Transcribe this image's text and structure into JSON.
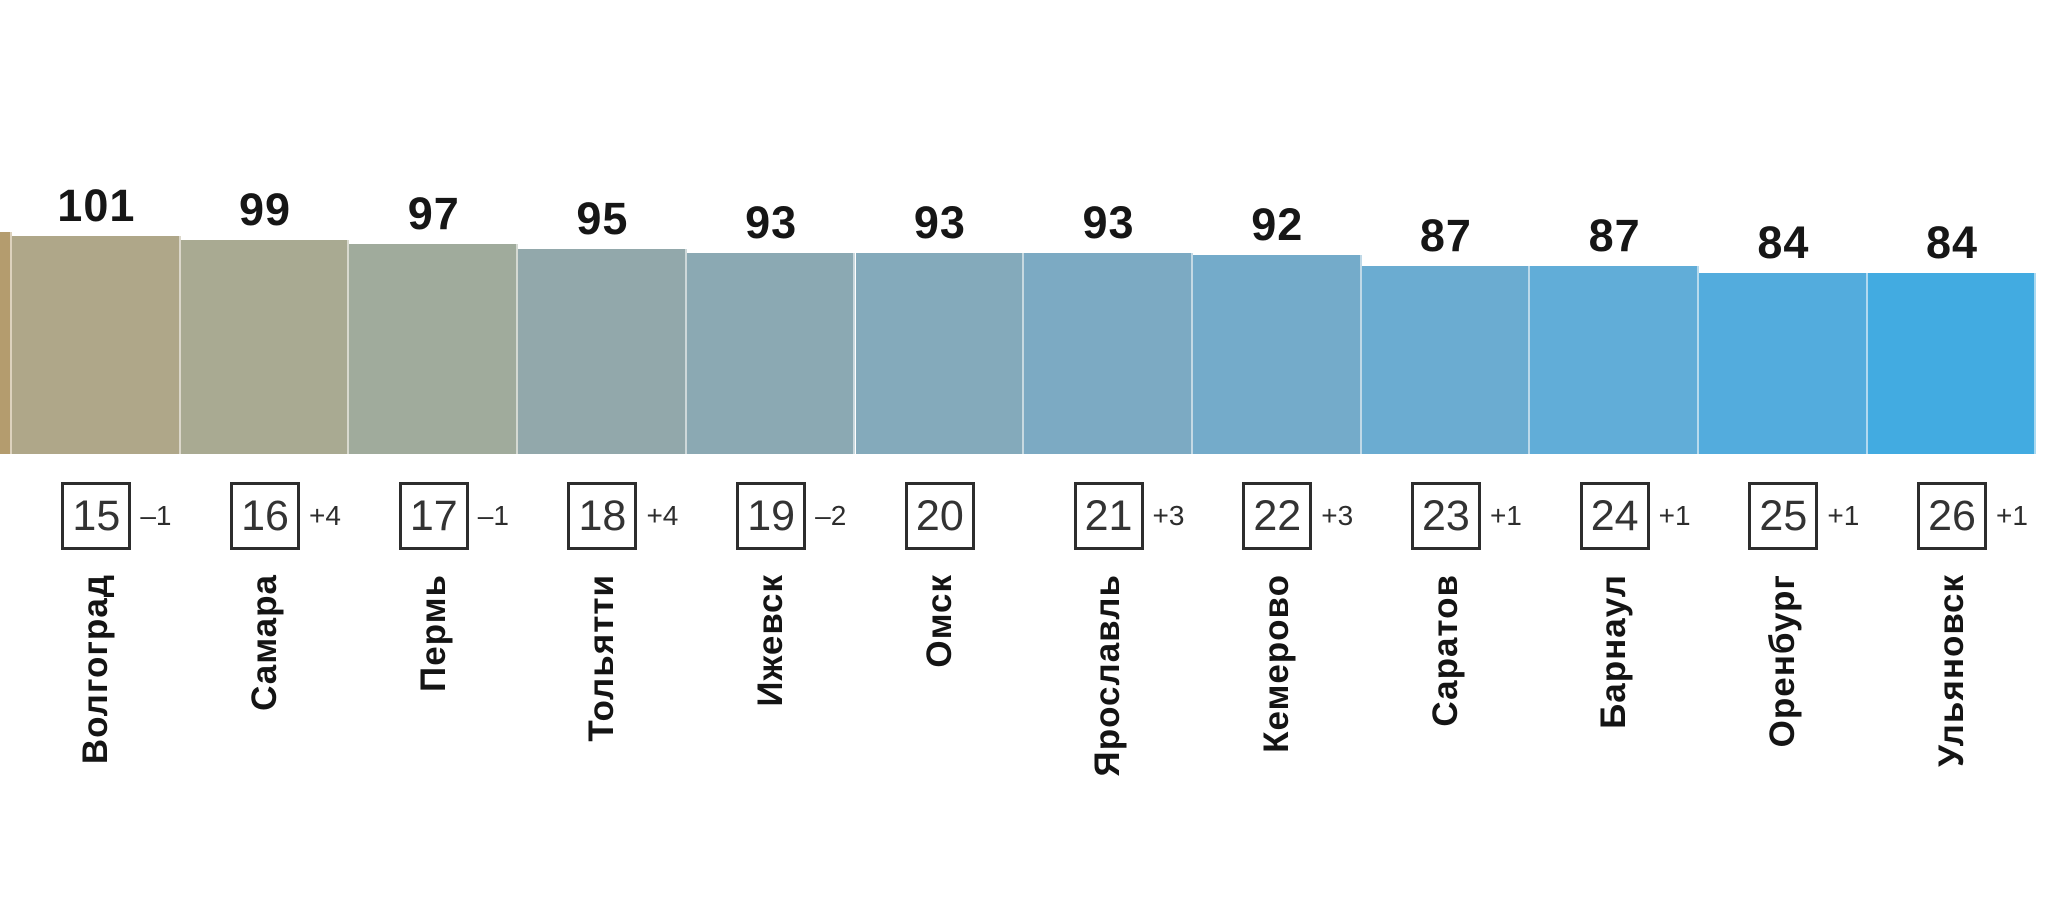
{
  "chart_data": {
    "type": "bar",
    "title": "",
    "xlabel": "",
    "ylabel": "",
    "categories": [
      "Волгоград",
      "Самара",
      "Пермь",
      "Тольятти",
      "Ижевск",
      "Омск",
      "Ярославль",
      "Кемерово",
      "Саратов",
      "Барнаул",
      "Оренбург",
      "Ульяновск"
    ],
    "values": [
      101,
      99,
      97,
      95,
      93,
      93,
      93,
      92,
      87,
      87,
      84,
      84
    ],
    "ranks": [
      15,
      16,
      17,
      18,
      19,
      20,
      21,
      22,
      23,
      24,
      25,
      26
    ],
    "rank_changes": [
      "–1",
      "+4",
      "–1",
      "+4",
      "–2",
      "",
      "+3",
      "+3",
      "+1",
      "+1",
      "+1",
      "+1"
    ],
    "bar_colors": [
      "#afa789",
      "#a9aa92",
      "#a0ab9c",
      "#92a8ab",
      "#8ba9b3",
      "#84aabb",
      "#7caac3",
      "#74abca",
      "#6bacd1",
      "#61add8",
      "#53acdd",
      "#42abe1"
    ],
    "clipped_left_bar": {
      "color": "#b49c6e",
      "note": "partial taller bar cropped at left edge"
    },
    "value_label_color": "#161616",
    "legend": "none",
    "grid": "off",
    "layout_hint": "descending ranked bar chart, value labels above bars, rank boxes with change badges below, city names rotated bottom-to-top"
  }
}
